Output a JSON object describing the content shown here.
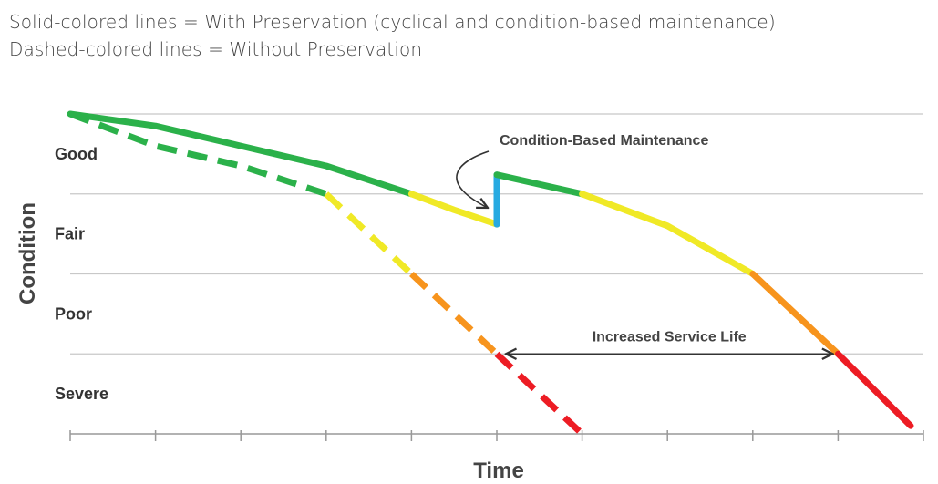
{
  "legend": {
    "line1": "Solid-colored lines = With Preservation (cyclical and condition-based maintenance)",
    "line2": "Dashed-colored lines = Without Preservation"
  },
  "chart_data": {
    "type": "line",
    "xlabel": "Time",
    "ylabel": "Condition",
    "condition_bands": [
      "Good",
      "Fair",
      "Poor",
      "Severe"
    ],
    "colors": {
      "good": "#2bb14a",
      "fair": "#f0e926",
      "poor": "#f7941d",
      "severe": "#ed1c24",
      "maintenance": "#27aae1",
      "grid": "#c8c8c8",
      "axis": "#999999"
    },
    "series": [
      {
        "name": "With Preservation",
        "style": "solid",
        "segments": [
          {
            "band": "good",
            "points": [
              [
                0.0,
                4.0
              ],
              [
                1.0,
                3.85
              ],
              [
                2.0,
                3.6
              ],
              [
                3.0,
                3.35
              ],
              [
                4.0,
                3.0
              ]
            ]
          },
          {
            "band": "fair",
            "points": [
              [
                4.0,
                3.0
              ],
              [
                4.5,
                2.8
              ],
              [
                5.0,
                2.62
              ]
            ]
          },
          {
            "band": "maintenance",
            "points": [
              [
                5.0,
                2.62
              ],
              [
                5.0,
                3.24
              ]
            ]
          },
          {
            "band": "good",
            "points": [
              [
                5.0,
                3.24
              ],
              [
                6.0,
                3.0
              ]
            ]
          },
          {
            "band": "fair",
            "points": [
              [
                6.0,
                3.0
              ],
              [
                7.0,
                2.6
              ],
              [
                8.0,
                2.0
              ]
            ]
          },
          {
            "band": "poor",
            "points": [
              [
                8.0,
                2.0
              ],
              [
                9.0,
                1.0
              ]
            ]
          },
          {
            "band": "severe",
            "points": [
              [
                9.0,
                1.0
              ],
              [
                9.85,
                0.1
              ]
            ]
          }
        ]
      },
      {
        "name": "Without Preservation",
        "style": "dashed",
        "segments": [
          {
            "band": "good",
            "points": [
              [
                0.0,
                4.0
              ],
              [
                1.0,
                3.6
              ],
              [
                2.0,
                3.35
              ],
              [
                3.0,
                3.0
              ]
            ]
          },
          {
            "band": "fair",
            "points": [
              [
                3.0,
                3.0
              ],
              [
                4.0,
                2.0
              ]
            ]
          },
          {
            "band": "poor",
            "points": [
              [
                4.0,
                2.0
              ],
              [
                5.0,
                1.0
              ]
            ]
          },
          {
            "band": "severe",
            "points": [
              [
                5.0,
                1.0
              ],
              [
                6.0,
                0.0
              ]
            ]
          }
        ]
      }
    ],
    "annotations": [
      {
        "text": "Condition-Based Maintenance",
        "at": [
          5.0,
          2.9
        ]
      },
      {
        "text": "Increased Service Life",
        "from": [
          5.0,
          1.0
        ],
        "to": [
          9.0,
          1.0
        ]
      }
    ],
    "x_ticks": 10,
    "xlim": [
      0,
      10
    ],
    "ylim": [
      0,
      4
    ]
  }
}
